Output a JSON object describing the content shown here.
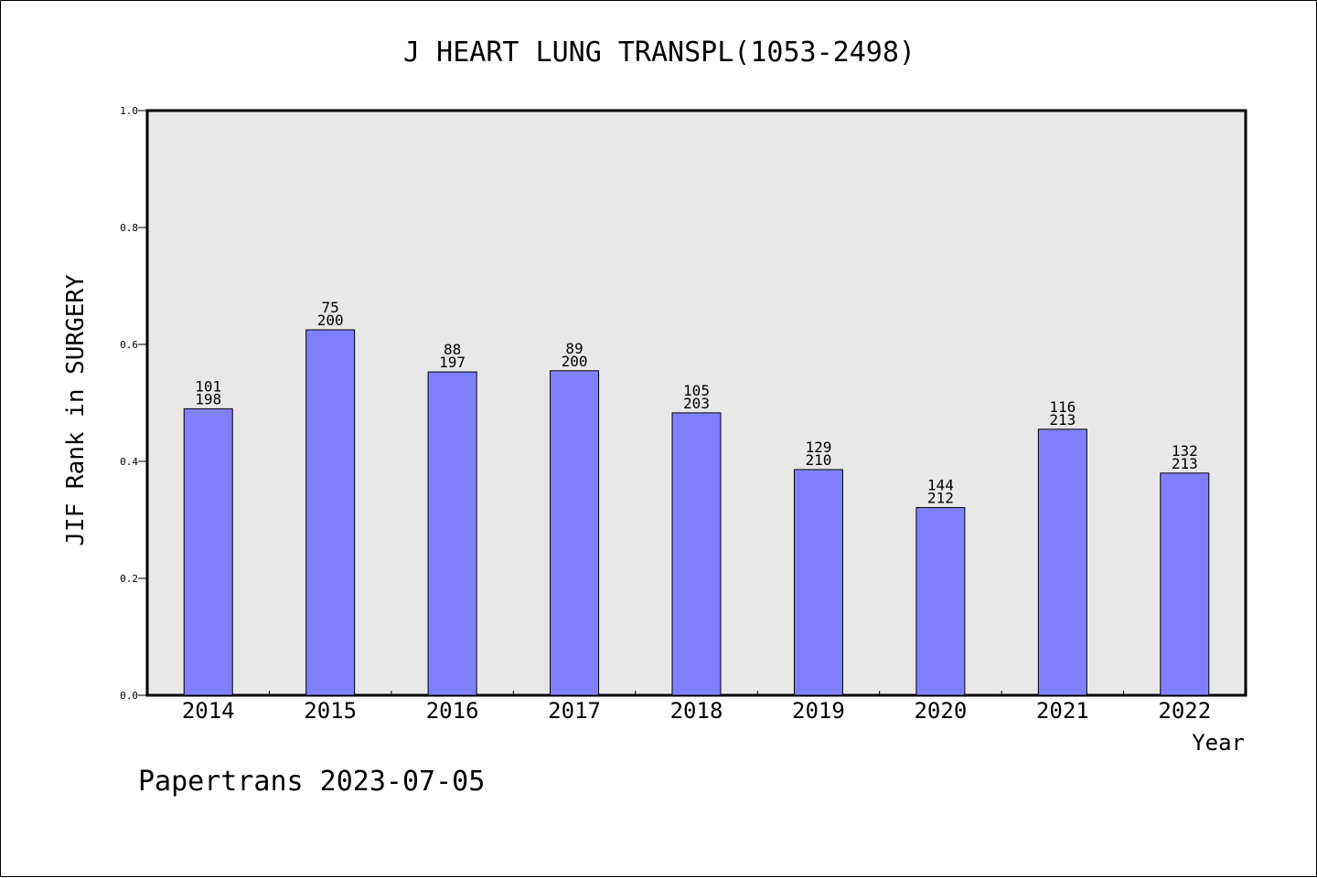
{
  "chart_data": {
    "type": "bar",
    "title": "J HEART LUNG TRANSPL(1053-2498)",
    "ylabel": "JIF Rank in SURGERY",
    "xlabel": "Year",
    "categories": [
      "2014",
      "2015",
      "2016",
      "2017",
      "2018",
      "2019",
      "2020",
      "2021",
      "2022"
    ],
    "values": [
      0.49,
      0.625,
      0.553,
      0.555,
      0.483,
      0.386,
      0.321,
      0.455,
      0.38
    ],
    "rank": [
      "101",
      "75",
      "88",
      "89",
      "105",
      "129",
      "144",
      "116",
      "132"
    ],
    "total": [
      "198",
      "200",
      "197",
      "200",
      "203",
      "210",
      "212",
      "213",
      "213"
    ],
    "ylim": [
      0,
      1.0
    ],
    "yticks": [
      "0.0",
      "0.2",
      "0.4",
      "0.6",
      "0.8",
      "1.0"
    ],
    "grid": false,
    "bar_color": "#8080ff",
    "plot_background": "#e8e8e8"
  },
  "footer": "Papertrans 2023-07-05"
}
